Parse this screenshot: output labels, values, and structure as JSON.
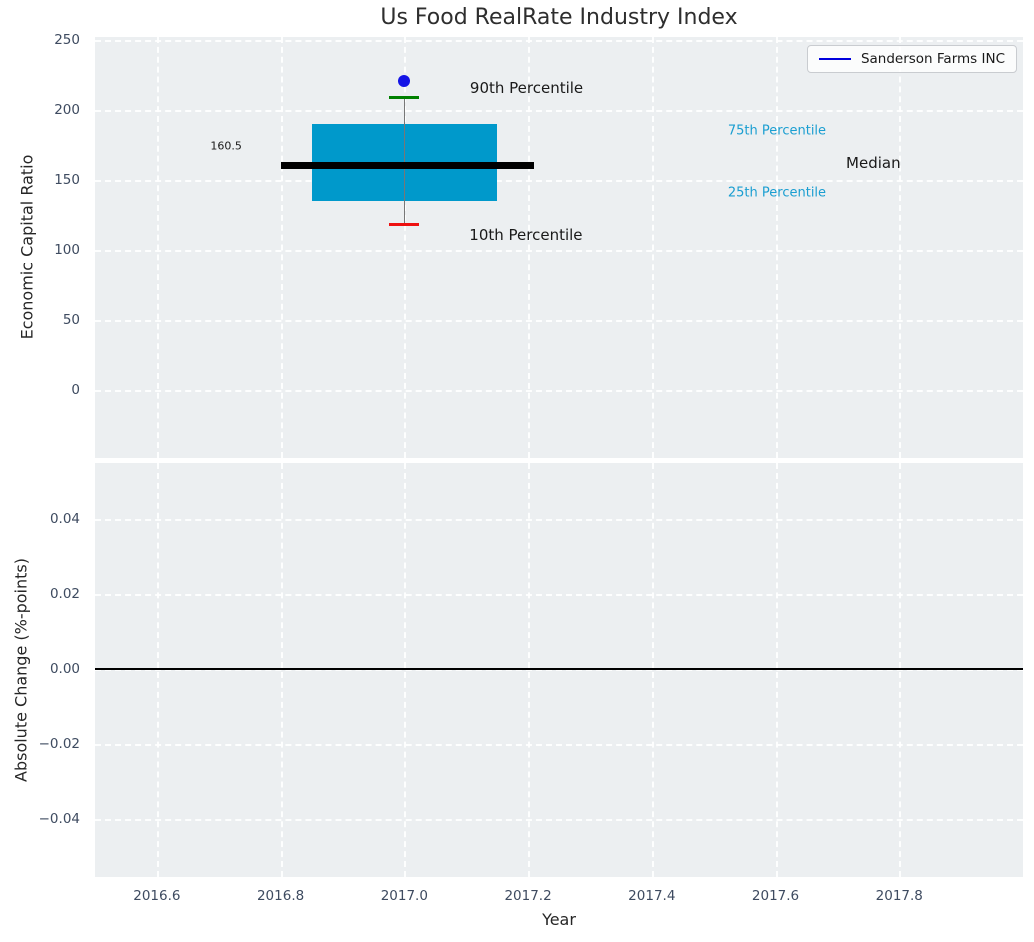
{
  "title": "Us Food RealRate Industry Index",
  "legend": {
    "label": "Sanderson Farms INC",
    "line_color": "#0000dd"
  },
  "colors": {
    "figure_bg": "#ffffff",
    "plot_bg": "#eceff1",
    "grid": "#ffffff",
    "tick_label": "#3e4b60",
    "axis_label": "#262626",
    "box_fill": "#0099cb",
    "median_line": "#000000",
    "whisker": "#777777",
    "cap_top": "#008000",
    "cap_bottom": "#ee1111",
    "company_point": "#1414e6",
    "zero_line": "#000000",
    "percentile_label": "#1a9ed1"
  },
  "chart_data": [
    {
      "type": "box",
      "title": "Us Food RealRate Industry Index",
      "ylabel": "Economic Capital Ratio",
      "xlim": [
        2016.5,
        2018.0
      ],
      "ylim": [
        -48.6,
        252.1
      ],
      "yticks": [
        0,
        50,
        100,
        150,
        200,
        250
      ],
      "ytick_labels": [
        "0",
        "50",
        "100",
        "150",
        "200",
        "250"
      ],
      "xticks": [
        2016.6,
        2016.8,
        2017.0,
        2017.2,
        2017.4,
        2017.6,
        2017.8
      ],
      "grid": true,
      "legend_position": "upper right",
      "box": {
        "x": 2017.0,
        "p10": 118,
        "p25": 135,
        "median": 160.5,
        "p75": 190,
        "p90": 209,
        "box_x_range": [
          2016.85,
          2017.15
        ],
        "median_x_range": [
          2016.8,
          2017.21
        ],
        "cap_half_width": 0.024
      },
      "company_point": {
        "name": "Sanderson Farms INC",
        "x": 2017.0,
        "y": 221
      },
      "annotations": [
        {
          "text": "90th Percentile",
          "x": 2017.106,
          "y": 216,
          "color": "#1a1a1a",
          "size": 15,
          "align": "left"
        },
        {
          "text": "10th Percentile",
          "x": 2017.105,
          "y": 111,
          "color": "#1a1a1a",
          "size": 15,
          "align": "left"
        },
        {
          "text": "75th Percentile",
          "x": 2017.523,
          "y": 185,
          "color": "#1a9ed1",
          "size": 13,
          "align": "left"
        },
        {
          "text": "25th Percentile",
          "x": 2017.523,
          "y": 141,
          "color": "#1a9ed1",
          "size": 13,
          "align": "left"
        },
        {
          "text": "Median",
          "x": 2017.714,
          "y": 162,
          "color": "#1a1a1a",
          "size": 15,
          "align": "left"
        },
        {
          "text": "160.5",
          "x": 2016.712,
          "y": 174,
          "color": "#1a1a1a",
          "size": 11,
          "align": "center"
        }
      ]
    },
    {
      "type": "line",
      "ylabel": "Absolute Change (%-points)",
      "xlabel": "Year",
      "xlim": [
        2016.5,
        2018.0
      ],
      "ylim": [
        -0.0555,
        0.0549
      ],
      "yticks": [
        0.04,
        0.02,
        0.0,
        -0.02,
        -0.04
      ],
      "ytick_labels": [
        "0.04",
        "0.02",
        "0.00",
        "−0.02",
        "−0.04"
      ],
      "xticks": [
        2016.6,
        2016.8,
        2017.0,
        2017.2,
        2017.4,
        2017.6,
        2017.8
      ],
      "xtick_labels": [
        "2016.6",
        "2016.8",
        "2017.0",
        "2017.2",
        "2017.4",
        "2017.6",
        "2017.8"
      ],
      "grid": true,
      "zero_line_y": 0.0,
      "series": []
    }
  ]
}
